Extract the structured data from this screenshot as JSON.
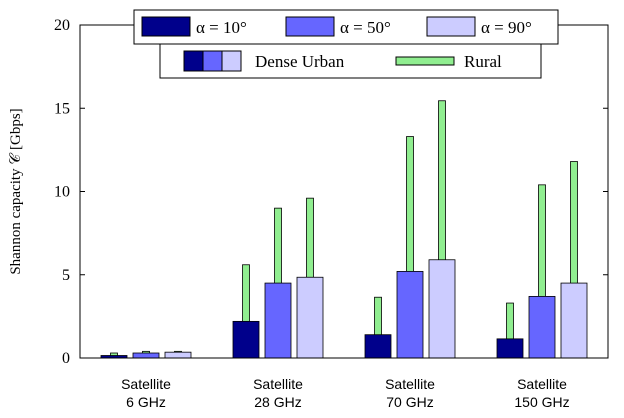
{
  "chart_data": {
    "type": "bar",
    "categories": [
      [
        "Satellite",
        "6 GHz"
      ],
      [
        "Satellite",
        "28 GHz"
      ],
      [
        "Satellite",
        "70 GHz"
      ],
      [
        "Satellite",
        "150 GHz"
      ]
    ],
    "ylabel": "Shannon capacity 𝒞 [Gbps]",
    "ylim": [
      0,
      20
    ],
    "yticks": [
      0,
      5,
      10,
      15,
      20
    ],
    "grid": false,
    "legend_position": "top-center",
    "series_labels": [
      "α = 10°",
      "α = 50°",
      "α = 90°"
    ],
    "environment_labels": [
      "Dense Urban",
      "Rural"
    ],
    "colors": {
      "alpha10": "#00008b",
      "alpha50": "#6666ff",
      "alpha90": "#ccccff",
      "rural": "#90ee90"
    },
    "series": [
      {
        "name": "α = 10°",
        "environment": "Dense Urban",
        "values": [
          0.15,
          2.2,
          1.4,
          1.15
        ]
      },
      {
        "name": "α = 50°",
        "environment": "Dense Urban",
        "values": [
          0.3,
          4.5,
          5.2,
          3.7
        ]
      },
      {
        "name": "α = 90°",
        "environment": "Dense Urban",
        "values": [
          0.35,
          4.85,
          5.9,
          4.5
        ]
      },
      {
        "name": "α = 10°",
        "environment": "Rural",
        "values": [
          0.3,
          5.6,
          3.65,
          3.3
        ]
      },
      {
        "name": "α = 50°",
        "environment": "Rural",
        "values": [
          0.4,
          9.0,
          13.3,
          10.4
        ]
      },
      {
        "name": "α = 90°",
        "environment": "Rural",
        "values": [
          0.4,
          9.6,
          15.45,
          11.8
        ]
      }
    ]
  }
}
